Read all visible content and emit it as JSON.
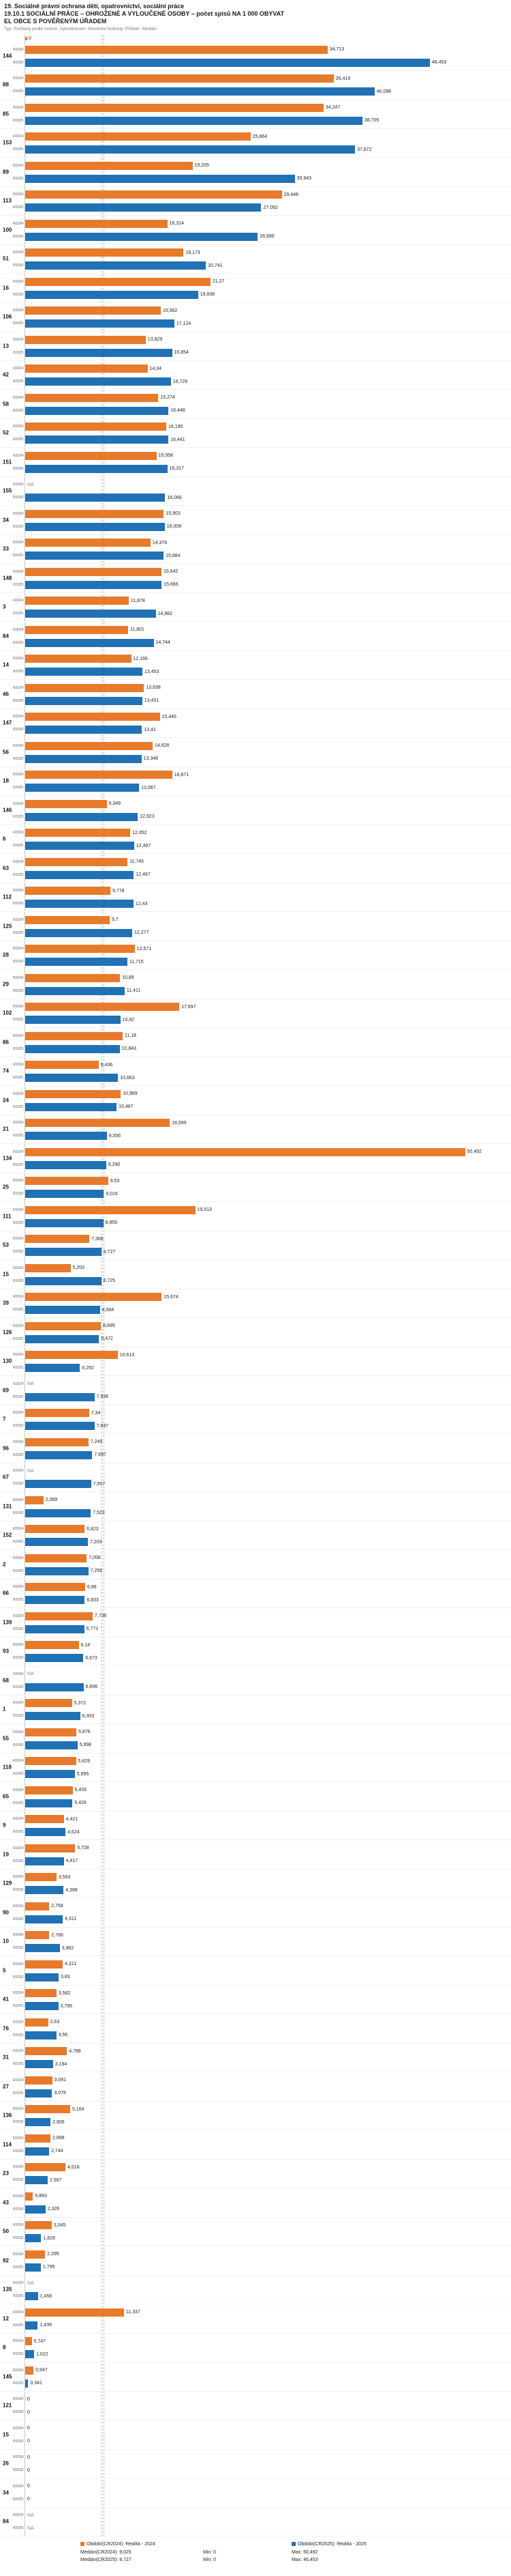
{
  "header": {
    "title_line1": "19. Sociálně právní ochrana dětí, opatrovnictví, sociální práce",
    "title_line2": "19.10.1 SOCIÁLNÍ PRÁCE – OHROŽENÉ A VYLOUČENÉ OSOBY – počet spisů NA 1 000 OBYVAT",
    "title_line3": "EL OBCE S POVĚŘENÝM ÚŘADEM",
    "meta": "Typ: Počítaný podle vzorce. Vyhodnocení: Absolutní hodnoty. Průměr: Medián"
  },
  "chart_data": {
    "type": "bar",
    "orientation": "horizontal",
    "title": "19.10.1 SOCIÁLNÍ PRÁCE – OHROŽENÉ A VYLOUČENÉ OSOBY – počet spisů NA 1 000 OBYVATEL OBCE S POVĚŘENÝM ÚŘADEM",
    "series": [
      {
        "name": "Realita - 2024",
        "key": "r2024",
        "color": "#e87a2c"
      },
      {
        "name": "Realita - 2025",
        "key": "r2025",
        "color": "#2171b5"
      }
    ],
    "row_labels": [
      "R2024",
      "R2025"
    ],
    "x_axis": {
      "min": 0,
      "max": 51,
      "origin_label": "0"
    },
    "medians": {
      "r2024": "9,025",
      "r2025": "8,727"
    },
    "groups": [
      {
        "id": "144",
        "r2024": "34,713",
        "r2025": "46,453"
      },
      {
        "id": "88",
        "r2024": "35,419",
        "r2025": "40,098"
      },
      {
        "id": "85",
        "r2024": "34,247",
        "r2025": "38,705"
      },
      {
        "id": "153",
        "r2024": "25,864",
        "r2025": "37,872"
      },
      {
        "id": "89",
        "r2024": "19,205",
        "r2025": "30,943"
      },
      {
        "id": "113",
        "r2024": "29,448",
        "r2025": "27,092"
      },
      {
        "id": "100",
        "r2024": "16,314",
        "r2025": "26,696"
      },
      {
        "id": "51",
        "r2024": "18,173",
        "r2025": "20,741"
      },
      {
        "id": "16",
        "r2024": "21,27",
        "r2025": "19,838"
      },
      {
        "id": "106",
        "r2024": "15,562",
        "r2025": "17,124"
      },
      {
        "id": "13",
        "r2024": "13,829",
        "r2025": "16,854"
      },
      {
        "id": "42",
        "r2024": "14,04",
        "r2025": "16,726"
      },
      {
        "id": "58",
        "r2024": "15,274",
        "r2025": "16,448"
      },
      {
        "id": "52",
        "r2024": "16,195",
        "r2025": "16,441"
      },
      {
        "id": "151",
        "r2024": "15,058",
        "r2025": "16,317"
      },
      {
        "id": "155",
        "r2024": "NA",
        "r2025": "16,066"
      },
      {
        "id": "34",
        "r2024": "15,903",
        "r2025": "16,008"
      },
      {
        "id": "33",
        "r2024": "14,376",
        "r2025": "15,884"
      },
      {
        "id": "148",
        "r2024": "15,642",
        "r2025": "15,666"
      },
      {
        "id": "3",
        "r2024": "11,878",
        "r2025": "14,982"
      },
      {
        "id": "84",
        "r2024": "11,801",
        "r2025": "14,744"
      },
      {
        "id": "14",
        "r2024": "12,166",
        "r2025": "13,453"
      },
      {
        "id": "46",
        "r2024": "13,638",
        "r2025": "13,431"
      },
      {
        "id": "147",
        "r2024": "15,445",
        "r2025": "13,41"
      },
      {
        "id": "56",
        "r2024": "14,628",
        "r2025": "13,348"
      },
      {
        "id": "18",
        "r2024": "16,871",
        "r2025": "13,067"
      },
      {
        "id": "146",
        "r2024": "9,349",
        "r2025": "12,923"
      },
      {
        "id": "6",
        "r2024": "12,052",
        "r2025": "12,497"
      },
      {
        "id": "63",
        "r2024": "11,745",
        "r2025": "12,467"
      },
      {
        "id": "112",
        "r2024": "9,778",
        "r2025": "12,43"
      },
      {
        "id": "125",
        "r2024": "9,7",
        "r2025": "12,277"
      },
      {
        "id": "28",
        "r2024": "12,571",
        "r2025": "11,715"
      },
      {
        "id": "29",
        "r2024": "10,89",
        "r2025": "11,411"
      },
      {
        "id": "102",
        "r2024": "17,697",
        "r2025": "10,92"
      },
      {
        "id": "86",
        "r2024": "11,18",
        "r2025": "10,843"
      },
      {
        "id": "74",
        "r2024": "8,436",
        "r2025": "10,663"
      },
      {
        "id": "24",
        "r2024": "10,969",
        "r2025": "10,487"
      },
      {
        "id": "21",
        "r2024": "16,599",
        "r2025": "9,356"
      },
      {
        "id": "134",
        "r2024": "50,492",
        "r2025": "9,290"
      },
      {
        "id": "25",
        "r2024": "9,53",
        "r2025": "9,016"
      },
      {
        "id": "111",
        "r2024": "19,513",
        "r2025": "8,955"
      },
      {
        "id": "53",
        "r2024": "7,368",
        "r2025": "8,727"
      },
      {
        "id": "15",
        "r2024": "5,203",
        "r2025": "8,725"
      },
      {
        "id": "39",
        "r2024": "15,674",
        "r2025": "8,584"
      },
      {
        "id": "126",
        "r2024": "8,689",
        "r2025": "8,472"
      },
      {
        "id": "130",
        "r2024": "10,613",
        "r2025": "6,292"
      },
      {
        "id": "69",
        "r2024": "NA",
        "r2025": "7,936"
      },
      {
        "id": "7",
        "r2024": "7,34",
        "r2025": "7,937"
      },
      {
        "id": "96",
        "r2024": "7,249",
        "r2025": "7,697"
      },
      {
        "id": "67",
        "r2024": "NA",
        "r2025": "7,557"
      },
      {
        "id": "131",
        "r2024": "2,089",
        "r2025": "7,523"
      },
      {
        "id": "152",
        "r2024": "6,823",
        "r2025": "7,203"
      },
      {
        "id": "2",
        "r2024": "7,058",
        "r2025": "7,256"
      },
      {
        "id": "66",
        "r2024": "6,88",
        "r2025": "6,833"
      },
      {
        "id": "139",
        "r2024": "7,736",
        "r2025": "6,771"
      },
      {
        "id": "93",
        "r2024": "6,14",
        "r2025": "6,673"
      },
      {
        "id": "68",
        "r2024": "NA",
        "r2025": "6,696"
      },
      {
        "id": "1",
        "r2024": "5,372",
        "r2025": "6,303"
      },
      {
        "id": "55",
        "r2024": "5,876",
        "r2025": "5,998"
      },
      {
        "id": "118",
        "r2024": "5,829",
        "r2025": "5,695"
      },
      {
        "id": "65",
        "r2024": "5,433",
        "r2025": "5,426"
      },
      {
        "id": "9",
        "r2024": "4,421",
        "r2025": "4,624"
      },
      {
        "id": "19",
        "r2024": "5,728",
        "r2025": "4,417"
      },
      {
        "id": "129",
        "r2024": "3,593",
        "r2025": "4,399"
      },
      {
        "id": "90",
        "r2024": "2,758",
        "r2025": "4,311"
      },
      {
        "id": "10",
        "r2024": "2,766",
        "r2025": "3,962"
      },
      {
        "id": "5",
        "r2024": "4,311",
        "r2025": "3,83"
      },
      {
        "id": "41",
        "r2024": "3,582",
        "r2025": "3,795"
      },
      {
        "id": "76",
        "r2024": "2,63",
        "r2025": "3,56"
      },
      {
        "id": "31",
        "r2024": "4,788",
        "r2025": "3,194"
      },
      {
        "id": "27",
        "r2024": "3,091",
        "r2025": "3,078"
      },
      {
        "id": "136",
        "r2024": "5,164",
        "r2025": "2,906"
      },
      {
        "id": "114",
        "r2024": "2,898",
        "r2025": "2,744"
      },
      {
        "id": "23",
        "r2024": "4,618",
        "r2025": "2,567"
      },
      {
        "id": "43",
        "r2024": "0,893",
        "r2025": "2,326"
      },
      {
        "id": "50",
        "r2024": "3,045",
        "r2025": "1,829"
      },
      {
        "id": "92",
        "r2024": "2,295",
        "r2025": "1,795"
      },
      {
        "id": "135",
        "r2024": "NA",
        "r2025": "1,456"
      },
      {
        "id": "12",
        "r2024": "11,337",
        "r2025": "1,439"
      },
      {
        "id": "8",
        "r2024": "0,747",
        "r2025": "1,022"
      },
      {
        "id": "145",
        "r2024": "0,947",
        "r2025": "0,341"
      },
      {
        "id": "121",
        "r2024": "0",
        "r2025": "0"
      },
      {
        "id": "15",
        "r2024": "0",
        "r2025": "0"
      },
      {
        "id": "26",
        "r2024": "0",
        "r2025": "0"
      },
      {
        "id": "34",
        "r2024": "0",
        "r2025": "0"
      },
      {
        "id": "84",
        "r2024": "NA",
        "r2025": "NA"
      }
    ]
  },
  "footer": {
    "legend_2024": "Období(CR2024): Realita - 2024",
    "legend_2025": "Období(CR2025): Realita - 2025",
    "median_2024": "Medián(CR2024): 9,025",
    "median_2025": "Medián(CR2025): 8,727",
    "min_2024": "Min: 0",
    "min_2025": "Min: 0",
    "max_2024": "Max: 50,492",
    "max_2025": "Max: 46,453"
  },
  "colors": {
    "bar_2024": "#e87a2c",
    "bar_2025": "#2171b5",
    "median_line": "#b9b9a8"
  }
}
